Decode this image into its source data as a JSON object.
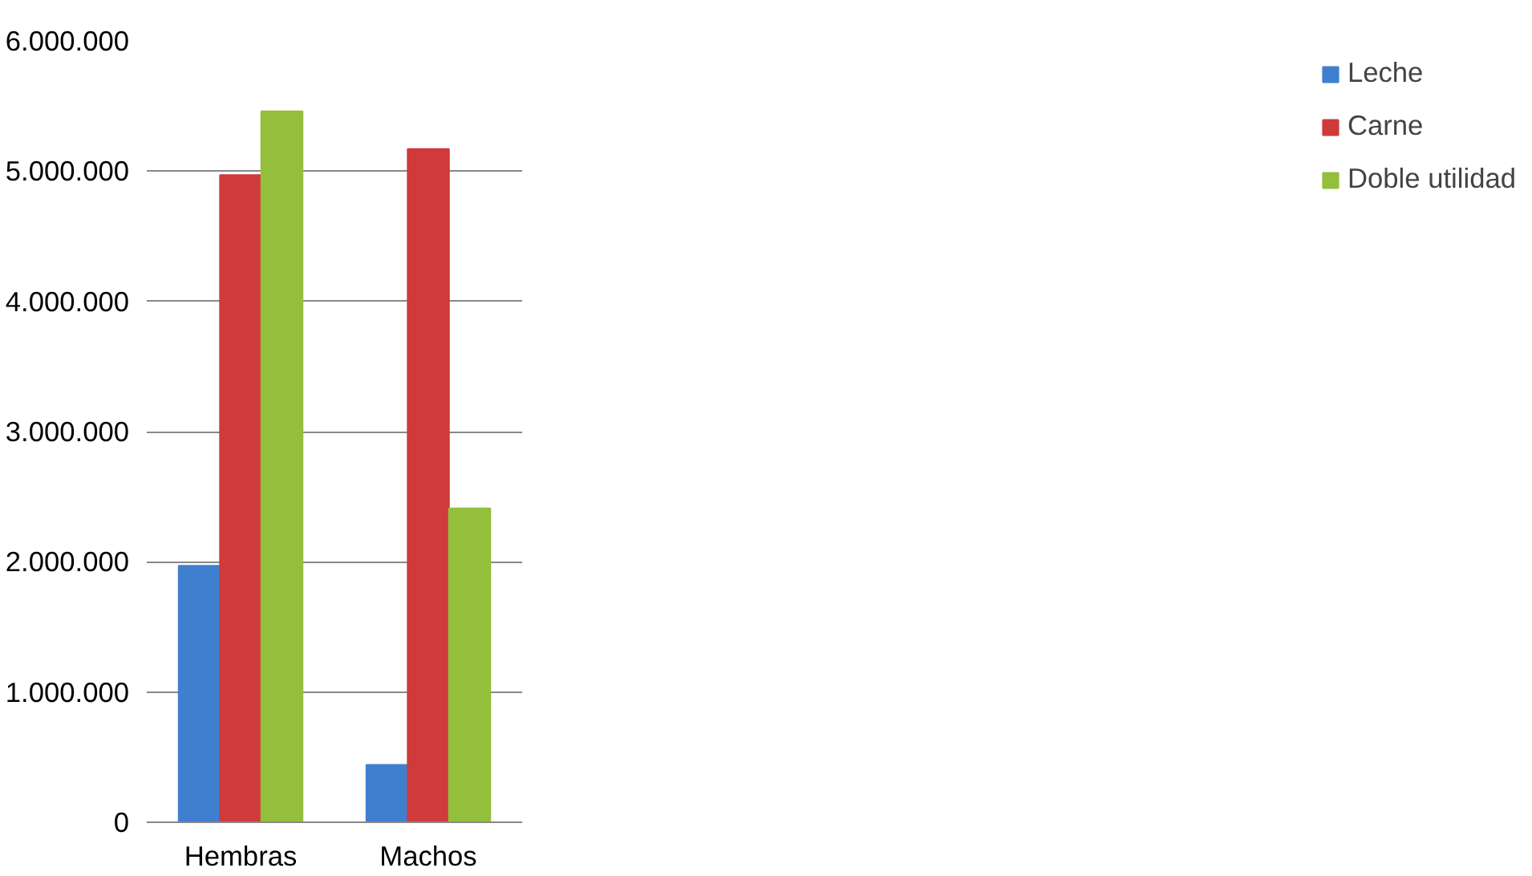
{
  "chart_data": {
    "type": "bar",
    "categories": [
      "Hembras",
      "Machos"
    ],
    "series": [
      {
        "name": "Leche",
        "color": "#3f7fd0",
        "values": [
          1970000,
          440000
        ]
      },
      {
        "name": "Carne",
        "color": "#d03a3a",
        "values": [
          4970000,
          5170000
        ]
      },
      {
        "name": "Doble utilidad",
        "color": "#93bf3c",
        "values": [
          5460000,
          2410000
        ]
      }
    ],
    "ylim": [
      0,
      6000000
    ],
    "yticks": [
      {
        "value": 0,
        "label": "0"
      },
      {
        "value": 1000000,
        "label": "1.000.000"
      },
      {
        "value": 2000000,
        "label": "2.000.000"
      },
      {
        "value": 3000000,
        "label": "3.000.000"
      },
      {
        "value": 4000000,
        "label": "4.000.000"
      },
      {
        "value": 5000000,
        "label": "5.000.000"
      },
      {
        "value": 6000000,
        "label": "6.000.000"
      }
    ],
    "grid": "y",
    "legend": "right"
  }
}
